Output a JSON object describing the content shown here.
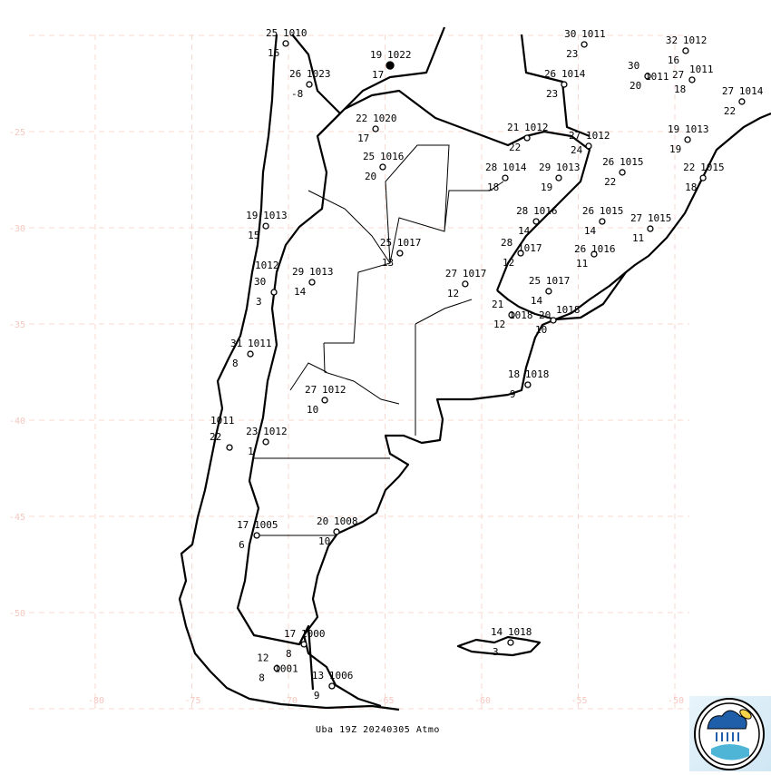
{
  "caption": "Uba 19Z 20240305 Atmo",
  "axes": {
    "lat_labels": [
      "-25",
      "-30",
      "-35",
      "-40",
      "-45",
      "-50"
    ],
    "lat_values": [
      -25,
      -30,
      -35,
      -40,
      -45,
      -50
    ],
    "lon_labels": [
      "-80",
      "-75",
      "-70",
      "-65",
      "-60",
      "-55",
      "-50"
    ],
    "lon_values": [
      -80,
      -75,
      -70,
      -65,
      -60,
      -55,
      -50
    ],
    "grid": true
  },
  "colors": {
    "grid": "#f8d8d0",
    "axis_labels": "#f6c8c0",
    "land_lines": "#000000"
  },
  "logo": {
    "name": "atmospheric-sciences-logo-icon"
  },
  "stations": [
    {
      "t": "25",
      "p": "1010",
      "td": "16",
      "lon": -70.14,
      "lat": -20.42
    },
    {
      "t": "26",
      "p": "1023",
      "td": "-8",
      "lon": -68.92,
      "lat": -22.55
    },
    {
      "t": "19",
      "p": "1022",
      "td": "17",
      "lon": -64.74,
      "lat": -21.56,
      "filled": true
    },
    {
      "t": "22",
      "p": "1020",
      "td": "17",
      "lon": -65.49,
      "lat": -24.86
    },
    {
      "t": "25",
      "p": "1016",
      "td": "20",
      "lon": -65.12,
      "lat": -26.84
    },
    {
      "t": "19",
      "p": "1013",
      "td": "15",
      "lon": -71.17,
      "lat": -29.91
    },
    {
      "t": "25",
      "p": "1017",
      "td": "13",
      "lon": -64.23,
      "lat": -31.32
    },
    {
      "t": "29",
      "p": "1013",
      "td": "14",
      "lon": -68.78,
      "lat": -32.83
    },
    {
      "t": "30",
      "p": "1012",
      "td": "3",
      "lon": -70.75,
      "lat": -33.35
    },
    {
      "t": "27",
      "p": "1017",
      "td": "12",
      "lon": -60.85,
      "lat": -32.92
    },
    {
      "t": "21",
      "p": "1012",
      "td": "22",
      "lon": -57.65,
      "lat": -25.33
    },
    {
      "t": "28",
      "p": "1014",
      "td": "18",
      "lon": -58.78,
      "lat": -27.41
    },
    {
      "t": "29",
      "p": "1013",
      "td": "19",
      "lon": -56.01,
      "lat": -27.41
    },
    {
      "t": "27",
      "p": "1012",
      "td": "24",
      "lon": -54.46,
      "lat": -25.75
    },
    {
      "t": "26",
      "p": "1015",
      "td": "22",
      "lon": -52.72,
      "lat": -27.12
    },
    {
      "t": "30",
      "p": "1011",
      "td": "23",
      "lon": -54.69,
      "lat": -20.47
    },
    {
      "t": "26",
      "p": "1014",
      "td": "23",
      "lon": -55.73,
      "lat": -22.55
    },
    {
      "t": "32",
      "p": "1012",
      "td": "16",
      "lon": -49.44,
      "lat": -20.8
    },
    {
      "t": "30",
      "p": "1011",
      "td": "20",
      "lon": -51.41,
      "lat": -22.12
    },
    {
      "t": "27",
      "p": "1011",
      "td": "18",
      "lon": -49.11,
      "lat": -22.31
    },
    {
      "t": "27",
      "p": "1014",
      "td": "22",
      "lon": -46.53,
      "lat": -23.44
    },
    {
      "t": "19",
      "p": "1013",
      "td": "19",
      "lon": -49.34,
      "lat": -25.42
    },
    {
      "t": "22",
      "p": "1015",
      "td": "18",
      "lon": -48.54,
      "lat": -27.41
    },
    {
      "t": "28",
      "p": "1016",
      "td": "14",
      "lon": -57.18,
      "lat": -29.67
    },
    {
      "t": "26",
      "p": "1015",
      "td": "14",
      "lon": -53.76,
      "lat": -29.67
    },
    {
      "t": "27",
      "p": "1015",
      "td": "11",
      "lon": -51.27,
      "lat": -30.05
    },
    {
      "t": "28",
      "p": "1017",
      "td": "12",
      "lon": -57.98,
      "lat": -31.32
    },
    {
      "t": "26",
      "p": "1016",
      "td": "11",
      "lon": -54.18,
      "lat": -31.37
    },
    {
      "t": "25",
      "p": "1017",
      "td": "14",
      "lon": -56.53,
      "lat": -33.3
    },
    {
      "t": "21",
      "p": "1018",
      "td": "12",
      "lon": -58.45,
      "lat": -34.53
    },
    {
      "t": "20",
      "p": "1018",
      "td": "10",
      "lon": -56.29,
      "lat": -34.81
    },
    {
      "t": "18",
      "p": "1018",
      "td": "9",
      "lon": -57.61,
      "lat": -38.16
    },
    {
      "t": "31",
      "p": "1011",
      "td": "8",
      "lon": -71.97,
      "lat": -36.56
    },
    {
      "t": "27",
      "p": "1012",
      "td": "10",
      "lon": -68.12,
      "lat": -38.96
    },
    {
      "t": "23",
      "p": "1012",
      "td": "1",
      "lon": -71.17,
      "lat": -41.13
    },
    {
      "t": "22",
      "p": "1011",
      "td": "",
      "lon": -73.05,
      "lat": -41.42
    },
    {
      "t": "17",
      "p": "1005",
      "td": "6",
      "lon": -71.64,
      "lat": -45.99
    },
    {
      "t": "20",
      "p": "1008",
      "td": "10",
      "lon": -67.51,
      "lat": -45.8
    },
    {
      "t": "17",
      "p": "1000",
      "td": "8",
      "lon": -69.2,
      "lat": -51.65
    },
    {
      "t": "12",
      "p": "1001",
      "td": "8",
      "lon": -70.6,
      "lat": -52.9
    },
    {
      "t": "13",
      "p": "1006",
      "td": "9",
      "lon": -67.75,
      "lat": -53.82
    },
    {
      "t": "14",
      "p": "1018",
      "td": "3",
      "lon": -58.5,
      "lat": -51.56
    }
  ]
}
